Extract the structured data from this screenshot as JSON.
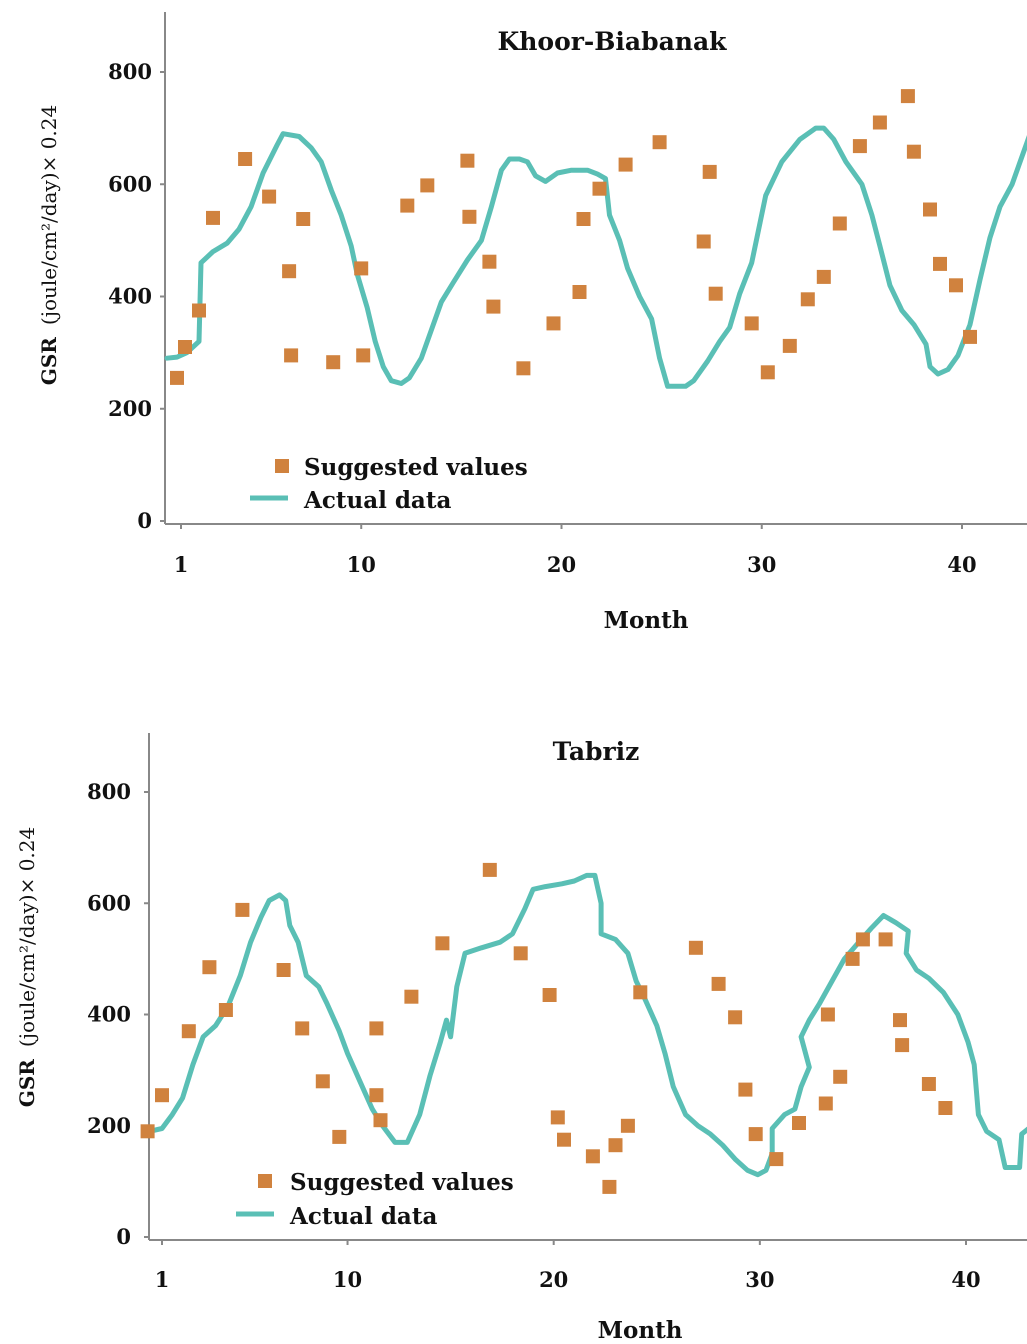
{
  "colors": {
    "suggested": "#D0823E",
    "actual": "#5ABFB5",
    "axis": "#888888",
    "text": "#111111"
  },
  "chart_data": [
    {
      "type": "line+scatter",
      "title": "Khoor-Biabanak",
      "xlabel": "Month",
      "ylabel_bold": "GSR",
      "ylabel": "(joule/cm²/day)× 0.24",
      "xlim": [
        0.3,
        44.5
      ],
      "ylim": [
        0,
        900
      ],
      "xticks": [
        1,
        10,
        20,
        30,
        40
      ],
      "yticks": [
        0,
        200,
        400,
        600,
        800
      ],
      "legend": {
        "position": "bottom-left",
        "suggested_label": "Suggested values",
        "actual_label": "Actual data"
      },
      "series": [
        {
          "name": "Actual data",
          "kind": "line",
          "points": [
            [
              0.3,
              290
            ],
            [
              0.8,
              292
            ],
            [
              1.3,
              300
            ],
            [
              1.9,
              320
            ],
            [
              2.0,
              460
            ],
            [
              2.6,
              480
            ],
            [
              3.3,
              495
            ],
            [
              3.9,
              520
            ],
            [
              4.5,
              560
            ],
            [
              5.1,
              620
            ],
            [
              5.8,
              670
            ],
            [
              6.1,
              690
            ],
            [
              6.9,
              685
            ],
            [
              7.5,
              665
            ],
            [
              8.0,
              640
            ],
            [
              8.5,
              590
            ],
            [
              9.0,
              545
            ],
            [
              9.5,
              490
            ],
            [
              9.8,
              440
            ],
            [
              10.3,
              380
            ],
            [
              10.7,
              320
            ],
            [
              11.1,
              275
            ],
            [
              11.5,
              250
            ],
            [
              12.0,
              245
            ],
            [
              12.4,
              255
            ],
            [
              13.0,
              290
            ],
            [
              13.5,
              340
            ],
            [
              14.0,
              390
            ],
            [
              14.6,
              425
            ],
            [
              15.3,
              465
            ],
            [
              16.0,
              500
            ],
            [
              16.5,
              560
            ],
            [
              17.0,
              625
            ],
            [
              17.4,
              645
            ],
            [
              17.9,
              645
            ],
            [
              18.3,
              640
            ],
            [
              18.7,
              615
            ],
            [
              19.2,
              605
            ],
            [
              19.8,
              620
            ],
            [
              20.5,
              625
            ],
            [
              21.3,
              625
            ],
            [
              21.8,
              618
            ],
            [
              22.2,
              610
            ],
            [
              22.4,
              545
            ],
            [
              22.9,
              500
            ],
            [
              23.3,
              450
            ],
            [
              23.9,
              400
            ],
            [
              24.5,
              360
            ],
            [
              24.9,
              290
            ],
            [
              25.3,
              240
            ],
            [
              26.2,
              240
            ],
            [
              26.6,
              250
            ],
            [
              27.3,
              285
            ],
            [
              27.9,
              320
            ],
            [
              28.4,
              345
            ],
            [
              28.9,
              405
            ],
            [
              29.5,
              460
            ],
            [
              30.2,
              580
            ],
            [
              31.0,
              640
            ],
            [
              31.9,
              680
            ],
            [
              32.7,
              700
            ],
            [
              33.1,
              700
            ],
            [
              33.6,
              680
            ],
            [
              34.2,
              640
            ],
            [
              35.0,
              600
            ],
            [
              35.5,
              545
            ],
            [
              35.9,
              490
            ],
            [
              36.4,
              420
            ],
            [
              37.0,
              375
            ],
            [
              37.6,
              350
            ],
            [
              38.2,
              315
            ],
            [
              38.4,
              275
            ],
            [
              38.8,
              262
            ],
            [
              39.3,
              270
            ],
            [
              39.8,
              295
            ],
            [
              40.4,
              350
            ],
            [
              40.9,
              430
            ],
            [
              41.4,
              505
            ],
            [
              41.9,
              560
            ],
            [
              42.5,
              600
            ],
            [
              43.0,
              650
            ],
            [
              43.5,
              700
            ],
            [
              44.0,
              735
            ],
            [
              44.5,
              748
            ]
          ]
        },
        {
          "name": "Suggested values",
          "kind": "scatter",
          "points": [
            [
              0.8,
              255
            ],
            [
              1.2,
              310
            ],
            [
              1.9,
              375
            ],
            [
              2.6,
              540
            ],
            [
              4.2,
              645
            ],
            [
              5.4,
              578
            ],
            [
              6.4,
              445
            ],
            [
              6.5,
              295
            ],
            [
              7.1,
              538
            ],
            [
              8.6,
              283
            ],
            [
              10.0,
              450
            ],
            [
              10.1,
              295
            ],
            [
              12.3,
              562
            ],
            [
              13.3,
              598
            ],
            [
              15.3,
              642
            ],
            [
              15.4,
              542
            ],
            [
              16.4,
              462
            ],
            [
              16.6,
              382
            ],
            [
              18.1,
              272
            ],
            [
              19.6,
              352
            ],
            [
              20.9,
              408
            ],
            [
              21.1,
              538
            ],
            [
              21.9,
              592
            ],
            [
              23.2,
              635
            ],
            [
              24.9,
              675
            ],
            [
              27.1,
              498
            ],
            [
              27.4,
              622
            ],
            [
              27.7,
              405
            ],
            [
              29.5,
              352
            ],
            [
              30.3,
              265
            ],
            [
              31.4,
              312
            ],
            [
              32.3,
              395
            ],
            [
              33.1,
              435
            ],
            [
              33.9,
              530
            ],
            [
              34.9,
              668
            ],
            [
              35.9,
              710
            ],
            [
              37.3,
              757
            ],
            [
              37.6,
              658
            ],
            [
              38.4,
              555
            ],
            [
              38.9,
              458
            ],
            [
              39.7,
              420
            ],
            [
              40.4,
              328
            ]
          ]
        }
      ]
    },
    {
      "type": "line+scatter",
      "title": "Tabriz",
      "xlabel": "Month",
      "ylabel_bold": "GSR",
      "ylabel": "(joule/cm²/day)× 0.24",
      "xlim": [
        0,
        44
      ],
      "ylim": [
        0,
        900
      ],
      "xticks": [
        1,
        10,
        20,
        30,
        40
      ],
      "yticks": [
        0,
        200,
        400,
        600,
        800
      ],
      "legend": {
        "position": "bottom-left",
        "suggested_label": "Suggested values",
        "actual_label": "Actual data"
      },
      "series": [
        {
          "name": "Actual data",
          "kind": "line",
          "points": [
            [
              0.4,
              190
            ],
            [
              1.0,
              195
            ],
            [
              1.5,
              220
            ],
            [
              2.0,
              250
            ],
            [
              2.5,
              310
            ],
            [
              3.0,
              360
            ],
            [
              3.6,
              380
            ],
            [
              4.2,
              415
            ],
            [
              4.8,
              470
            ],
            [
              5.3,
              530
            ],
            [
              5.8,
              575
            ],
            [
              6.2,
              605
            ],
            [
              6.7,
              615
            ],
            [
              7.0,
              605
            ],
            [
              7.2,
              560
            ],
            [
              7.6,
              530
            ],
            [
              8.0,
              470
            ],
            [
              8.6,
              450
            ],
            [
              9.0,
              420
            ],
            [
              9.6,
              370
            ],
            [
              10.0,
              330
            ],
            [
              10.6,
              280
            ],
            [
              11.2,
              230
            ],
            [
              11.7,
              200
            ],
            [
              12.3,
              170
            ],
            [
              12.9,
              170
            ],
            [
              13.5,
              220
            ],
            [
              14.0,
              290
            ],
            [
              14.5,
              350
            ],
            [
              14.8,
              390
            ],
            [
              15.0,
              360
            ],
            [
              15.3,
              450
            ],
            [
              15.7,
              510
            ],
            [
              16.5,
              520
            ],
            [
              17.4,
              530
            ],
            [
              18.0,
              545
            ],
            [
              18.6,
              590
            ],
            [
              19.0,
              625
            ],
            [
              19.6,
              630
            ],
            [
              20.4,
              635
            ],
            [
              21.0,
              640
            ],
            [
              21.6,
              650
            ],
            [
              22.0,
              650
            ],
            [
              22.3,
              600
            ],
            [
              22.3,
              545
            ],
            [
              23.0,
              535
            ],
            [
              23.6,
              510
            ],
            [
              24.0,
              460
            ],
            [
              24.4,
              430
            ],
            [
              25.0,
              380
            ],
            [
              25.4,
              330
            ],
            [
              25.8,
              270
            ],
            [
              26.4,
              220
            ],
            [
              27.0,
              200
            ],
            [
              27.6,
              185
            ],
            [
              28.2,
              165
            ],
            [
              28.8,
              140
            ],
            [
              29.4,
              120
            ],
            [
              29.9,
              112
            ],
            [
              30.3,
              120
            ],
            [
              30.6,
              150
            ],
            [
              30.6,
              195
            ],
            [
              31.2,
              220
            ],
            [
              31.7,
              230
            ],
            [
              32.0,
              270
            ],
            [
              32.4,
              305
            ],
            [
              32.0,
              360
            ],
            [
              32.4,
              390
            ],
            [
              32.9,
              420
            ],
            [
              33.5,
              460
            ],
            [
              34.1,
              500
            ],
            [
              34.8,
              530
            ],
            [
              35.4,
              555
            ],
            [
              36.0,
              578
            ],
            [
              36.6,
              565
            ],
            [
              37.2,
              550
            ],
            [
              37.1,
              510
            ],
            [
              37.6,
              480
            ],
            [
              38.2,
              465
            ],
            [
              38.9,
              440
            ],
            [
              39.6,
              400
            ],
            [
              40.1,
              350
            ],
            [
              40.4,
              310
            ],
            [
              40.6,
              220
            ],
            [
              41.0,
              190
            ],
            [
              41.6,
              175
            ],
            [
              41.9,
              125
            ],
            [
              42.6,
              125
            ],
            [
              42.7,
              185
            ],
            [
              43.2,
              200
            ],
            [
              43.7,
              230
            ]
          ]
        },
        {
          "name": "Suggested values",
          "kind": "scatter",
          "points": [
            [
              0.3,
              190
            ],
            [
              1.0,
              255
            ],
            [
              2.3,
              370
            ],
            [
              3.3,
              485
            ],
            [
              4.1,
              408
            ],
            [
              4.9,
              588
            ],
            [
              6.9,
              480
            ],
            [
              7.8,
              375
            ],
            [
              8.8,
              280
            ],
            [
              9.6,
              180
            ],
            [
              11.4,
              375
            ],
            [
              11.4,
              255
            ],
            [
              11.6,
              210
            ],
            [
              13.1,
              432
            ],
            [
              14.6,
              528
            ],
            [
              16.9,
              660
            ],
            [
              18.4,
              510
            ],
            [
              19.8,
              435
            ],
            [
              20.2,
              215
            ],
            [
              20.5,
              175
            ],
            [
              21.9,
              145
            ],
            [
              22.7,
              90
            ],
            [
              23.0,
              165
            ],
            [
              23.6,
              200
            ],
            [
              24.2,
              440
            ],
            [
              26.9,
              520
            ],
            [
              28.0,
              455
            ],
            [
              28.8,
              395
            ],
            [
              29.3,
              265
            ],
            [
              29.8,
              185
            ],
            [
              30.8,
              140
            ],
            [
              31.9,
              205
            ],
            [
              33.2,
              240
            ],
            [
              33.3,
              400
            ],
            [
              33.9,
              288
            ],
            [
              34.5,
              500
            ],
            [
              35.0,
              535
            ],
            [
              36.1,
              535
            ],
            [
              36.8,
              390
            ],
            [
              36.9,
              345
            ],
            [
              38.2,
              275
            ],
            [
              39.0,
              232
            ]
          ]
        }
      ]
    }
  ]
}
